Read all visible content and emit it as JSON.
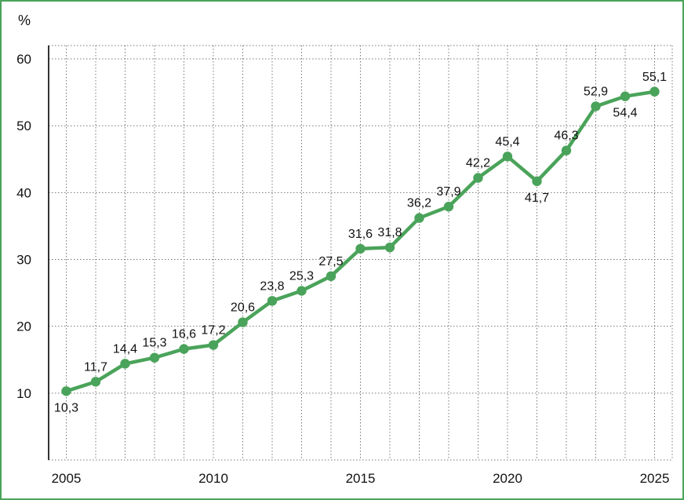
{
  "chart_data": {
    "type": "line",
    "unit_label": "%",
    "x": [
      2005,
      2006,
      2007,
      2008,
      2009,
      2010,
      2011,
      2012,
      2013,
      2014,
      2015,
      2016,
      2017,
      2018,
      2019,
      2020,
      2021,
      2022,
      2023,
      2024,
      2025
    ],
    "series": [
      {
        "values": [
          10.3,
          11.7,
          14.4,
          15.3,
          16.6,
          17.2,
          20.6,
          23.8,
          25.3,
          27.5,
          31.6,
          31.8,
          36.2,
          37.9,
          42.2,
          45.4,
          41.7,
          46.3,
          52.9,
          54.4,
          55.1
        ],
        "labels": [
          "10,3",
          "11,7",
          "14,4",
          "15,3",
          "16,6",
          "17,2",
          "20,6",
          "23,8",
          "25,3",
          "27,5",
          "31,6",
          "31,8",
          "36,2",
          "37,9",
          "42,2",
          "45,4",
          "41,7",
          "46,3",
          "52,9",
          "54,4",
          "55,1"
        ],
        "color": "#4aa35a"
      }
    ],
    "x_tick_values": [
      2005,
      2010,
      2015,
      2020,
      2025
    ],
    "x_tick_labels": [
      "2005",
      "2010",
      "2015",
      "2020",
      "2025"
    ],
    "y_tick_values": [
      10,
      20,
      30,
      40,
      50,
      60
    ],
    "y_tick_labels": [
      "10",
      "20",
      "30",
      "40",
      "50",
      "60"
    ],
    "xlim": [
      2004.4,
      2025.6
    ],
    "ylim": [
      0,
      62
    ],
    "grid": true,
    "colors": {
      "line": "#4aa35a",
      "frame": "#4aa35a",
      "grid": "#777777",
      "axis": "#000000"
    }
  }
}
